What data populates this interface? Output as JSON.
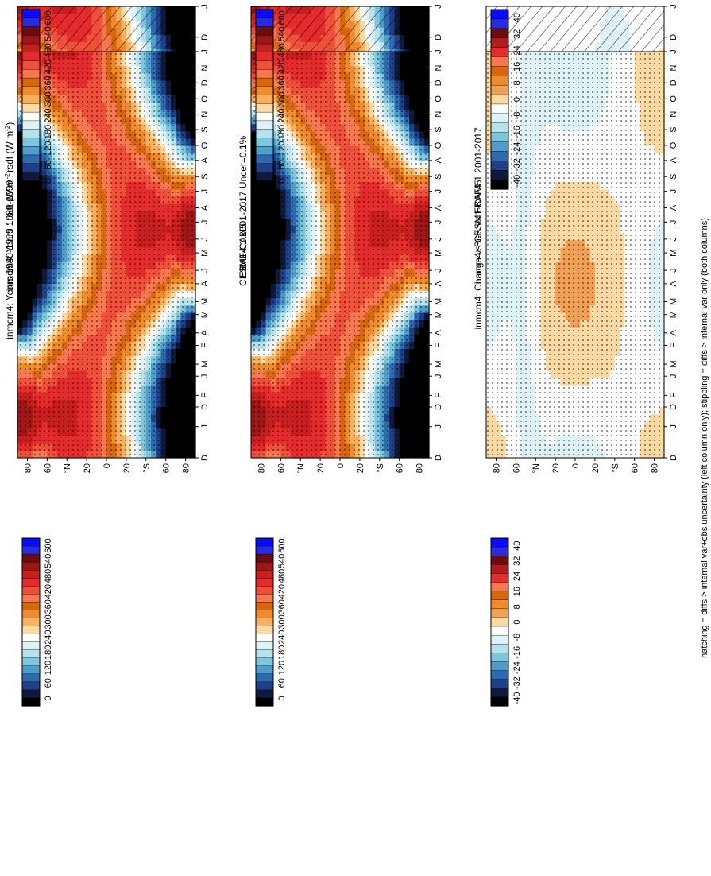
{
  "footer": "hatching = diffs > internal var+obs uncertainty (left column only); stippling = diffs > internal var only (both columns)",
  "palettes": {
    "abs": [
      "#0a0aff",
      "#2a2ae0",
      "#6a0d0d",
      "#9e1616",
      "#c81e1e",
      "#e52b2b",
      "#f04f3a",
      "#f7784e",
      "#d9660b",
      "#ee8b2c",
      "#f7b060",
      "#fbd9a2",
      "#ffffff",
      "#dff3f7",
      "#b5e2ec",
      "#7cc6de",
      "#4e9dcb",
      "#2e6aae",
      "#1f3f88",
      "#0f1a3a",
      "#000000"
    ],
    "diff": [
      "#0a0aff",
      "#2a2ae0",
      "#6a0d0d",
      "#b31b1b",
      "#e52b2b",
      "#f7784e",
      "#d9660b",
      "#ee8b2c",
      "#f2a055",
      "#fbd9a2",
      "#ffffff",
      "#dff3f7",
      "#b5e2ec",
      "#7cc6de",
      "#4e9dcb",
      "#2e6aae",
      "#1f3f88",
      "#0f1a3a",
      "#000000"
    ]
  },
  "chart_data": [
    {
      "type": "heatmap",
      "title": "inmcm4: Years 1980-1999 : rsdt (W m",
      "title_units_tail": ")",
      "units_exp": "-2",
      "x_ticks": [
        "D",
        "J",
        "F",
        "M",
        "A",
        "M",
        "J",
        "J",
        "A",
        "S",
        "O",
        "N",
        "D",
        "J"
      ],
      "y_ticks": [
        "80",
        "60",
        "°N",
        "20",
        "0",
        "20",
        "°S",
        "60",
        "80"
      ],
      "colorbar_labels": [
        "600",
        "540",
        "480",
        "420",
        "360",
        "300",
        "240",
        "180",
        "120",
        "60",
        "0"
      ],
      "palette": "abs",
      "field": "insolation",
      "overlay": "hatch"
    },
    {
      "type": "heatmap",
      "title": "inmcm4: Years 1980-1999 : rsdt (W m",
      "title_units_tail": ")",
      "units_exp": "-2",
      "x_ticks": [
        "D",
        "J",
        "F",
        "M",
        "A",
        "M",
        "J",
        "J",
        "A",
        "S",
        "O",
        "N",
        "D",
        "J"
      ],
      "y_ticks": [
        "80",
        "60",
        "°N",
        "20",
        "0",
        "20",
        "°S",
        "60",
        "80"
      ],
      "colorbar_labels": [
        "600",
        "540",
        "480",
        "420",
        "360",
        "300",
        "240",
        "180",
        "120",
        "60",
        "0"
      ],
      "palette": "abs",
      "field": "insolation",
      "overlay": "stipple"
    },
    {
      "type": "heatmap",
      "title": "EBAF4.1 2001-2017 Uncer=0.1%",
      "x_ticks": [
        "D",
        "J",
        "F",
        "M",
        "A",
        "M",
        "J",
        "J",
        "A",
        "S",
        "O",
        "N",
        "D",
        "J"
      ],
      "y_ticks": [
        "80",
        "60",
        "°N",
        "20",
        "0",
        "20",
        "°S",
        "60",
        "80"
      ],
      "colorbar_labels": [
        "600",
        "540",
        "480",
        "420",
        "360",
        "300",
        "240",
        "180",
        "120",
        "60",
        "0"
      ],
      "palette": "abs",
      "field": "insolation",
      "overlay": "hatch"
    },
    {
      "type": "heatmap",
      "title": "CESM1-CAM5",
      "x_ticks": [
        "D",
        "J",
        "F",
        "M",
        "A",
        "M",
        "J",
        "J",
        "A",
        "S",
        "O",
        "N",
        "D",
        "J"
      ],
      "y_ticks": [
        "80",
        "60",
        "°N",
        "20",
        "0",
        "20",
        "°S",
        "60",
        "80"
      ],
      "colorbar_labels": [
        "600",
        "540",
        "480",
        "420",
        "360",
        "300",
        "240",
        "180",
        "120",
        "60",
        "0"
      ],
      "palette": "abs",
      "field": "insolation",
      "overlay": "stipple"
    },
    {
      "type": "heatmap",
      "title": "inmcm4: Bias vs EBAF4.1 2001-2017",
      "x_ticks": [
        "D",
        "J",
        "F",
        "M",
        "A",
        "M",
        "J",
        "J",
        "A",
        "S",
        "O",
        "N",
        "D",
        "J"
      ],
      "y_ticks": [
        "80",
        "60",
        "°N",
        "20",
        "0",
        "20",
        "°S",
        "60",
        "80"
      ],
      "colorbar_labels": [
        "40",
        "32",
        "24",
        "16",
        "8",
        "0",
        "-8",
        "-16",
        "-24",
        "-32",
        "-40"
      ],
      "palette": "diff",
      "field": "bias",
      "overlay": "hatch"
    },
    {
      "type": "heatmap",
      "title": "inmcm4: Change vs CESM1-CAM5",
      "x_ticks": [
        "D",
        "J",
        "F",
        "M",
        "A",
        "M",
        "J",
        "J",
        "A",
        "S",
        "O",
        "N",
        "D",
        "J"
      ],
      "y_ticks": [
        "80",
        "60",
        "°N",
        "20",
        "0",
        "20",
        "°S",
        "60",
        "80"
      ],
      "colorbar_labels": [
        "40",
        "32",
        "24",
        "16",
        "8",
        "0",
        "-8",
        "-16",
        "-24",
        "-32",
        "-40"
      ],
      "palette": "diff",
      "field": "change",
      "overlay": "stipple"
    }
  ]
}
